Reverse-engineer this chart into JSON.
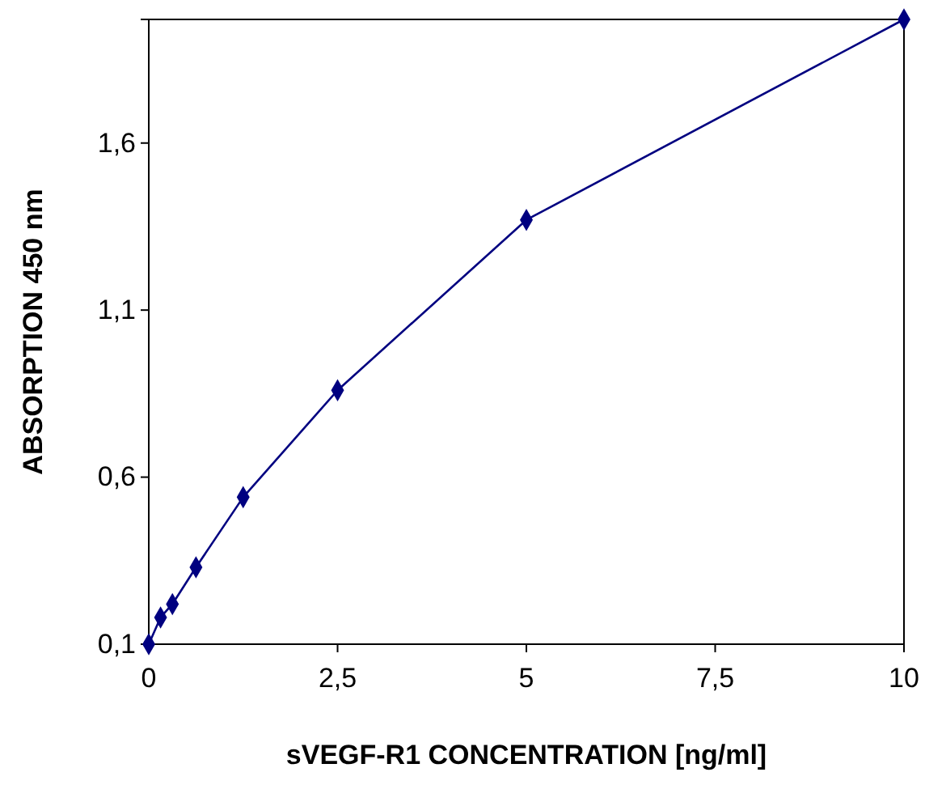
{
  "chart_data": {
    "type": "line",
    "xlabel": "sVEGF-R1 CONCENTRATION [ng/ml]",
    "ylabel": "ABSORPTION 450 nm",
    "x": [
      0,
      0.156,
      0.313,
      0.625,
      1.25,
      2.5,
      5,
      10
    ],
    "series": [
      {
        "color": "#000080",
        "values": [
          0.1,
          0.18,
          0.22,
          0.33,
          0.54,
          0.86,
          1.37,
          1.97
        ]
      }
    ],
    "xlim": [
      0,
      10
    ],
    "xticks": [
      0,
      {
        "value": 2.5,
        "label": "2,5"
      },
      5,
      {
        "value": 7.5,
        "label": "7,5"
      },
      10
    ],
    "ylim": [
      0.1,
      1.97
    ],
    "yticks": [
      {
        "value": 0.1,
        "label": "0,1"
      },
      {
        "value": 0.6,
        "label": "0,6"
      },
      {
        "value": 1.1,
        "label": "1,1"
      },
      {
        "value": 1.6,
        "label": "1,6"
      }
    ],
    "grid": false,
    "marker": "diamond",
    "line_style": "solid"
  }
}
